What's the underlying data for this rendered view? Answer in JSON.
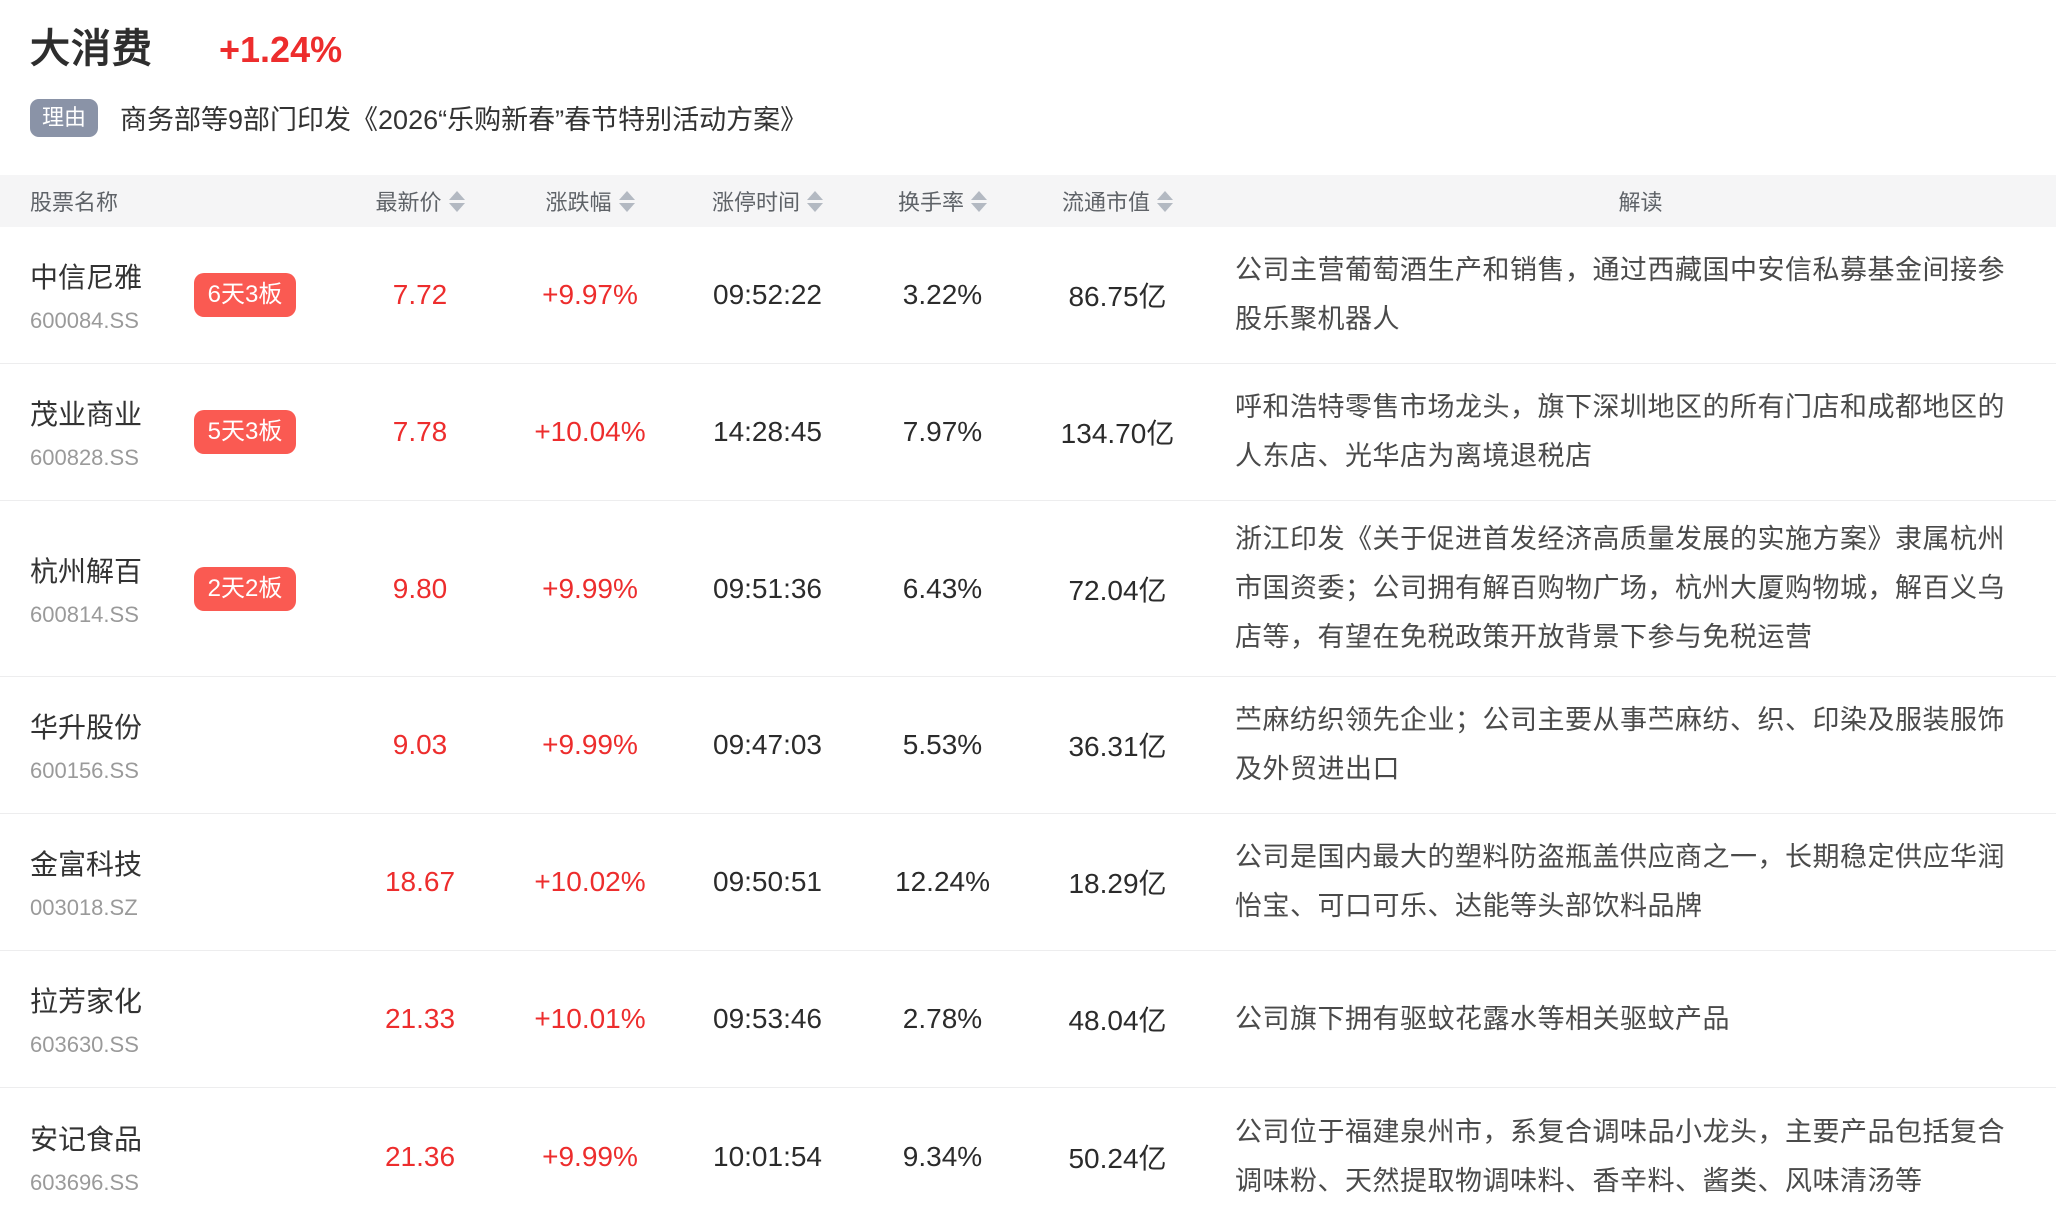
{
  "page": {
    "sector": {
      "name": "大消费",
      "change": "+1.24%"
    },
    "reason": {
      "tag": "理由",
      "text": "商务部等9部门印发《2026“乐购新春”春节特别活动方案》"
    }
  },
  "table": {
    "columns": [
      {
        "label": "股票名称",
        "sortable": false
      },
      {
        "label": "最新价",
        "sortable": true
      },
      {
        "label": "涨跌幅",
        "sortable": true
      },
      {
        "label": "涨停时间",
        "sortable": true
      },
      {
        "label": "换手率",
        "sortable": true
      },
      {
        "label": "流通市值",
        "sortable": true
      },
      {
        "label": "解读",
        "sortable": false
      }
    ],
    "rows": [
      {
        "name": "中信尼雅",
        "code": "600084.SS",
        "badge": "6天3板",
        "price": "7.72",
        "change": "+9.97%",
        "limit_time": "09:52:22",
        "turnover": "3.22%",
        "market_cap": "86.75亿",
        "comment": "公司主营葡萄酒生产和销售，通过西藏国中安信私募基金间接参股乐聚机器人"
      },
      {
        "name": "茂业商业",
        "code": "600828.SS",
        "badge": "5天3板",
        "price": "7.78",
        "change": "+10.04%",
        "limit_time": "14:28:45",
        "turnover": "7.97%",
        "market_cap": "134.70亿",
        "comment": "呼和浩特零售市场龙头，旗下深圳地区的所有门店和成都地区的人东店、光华店为离境退税店"
      },
      {
        "name": "杭州解百",
        "code": "600814.SS",
        "badge": "2天2板",
        "price": "9.80",
        "change": "+9.99%",
        "limit_time": "09:51:36",
        "turnover": "6.43%",
        "market_cap": "72.04亿",
        "comment": "浙江印发《关于促进首发经济高质量发展的实施方案》隶属杭州市国资委；公司拥有解百购物广场，杭州大厦购物城，解百义乌店等，有望在免税政策开放背景下参与免税运营"
      },
      {
        "name": "华升股份",
        "code": "600156.SS",
        "badge": "",
        "price": "9.03",
        "change": "+9.99%",
        "limit_time": "09:47:03",
        "turnover": "5.53%",
        "market_cap": "36.31亿",
        "comment": "苎麻纺织领先企业；公司主要从事苎麻纺、织、印染及服装服饰及外贸进出口"
      },
      {
        "name": "金富科技",
        "code": "003018.SZ",
        "badge": "",
        "price": "18.67",
        "change": "+10.02%",
        "limit_time": "09:50:51",
        "turnover": "12.24%",
        "market_cap": "18.29亿",
        "comment": "公司是国内最大的塑料防盗瓶盖供应商之一，长期稳定供应华润怡宝、可口可乐、达能等头部饮料品牌"
      },
      {
        "name": "拉芳家化",
        "code": "603630.SS",
        "badge": "",
        "price": "21.33",
        "change": "+10.01%",
        "limit_time": "09:53:46",
        "turnover": "2.78%",
        "market_cap": "48.04亿",
        "comment": "公司旗下拥有驱蚊花露水等相关驱蚊产品"
      },
      {
        "name": "安记食品",
        "code": "603696.SS",
        "badge": "",
        "price": "21.36",
        "change": "+9.99%",
        "limit_time": "10:01:54",
        "turnover": "9.34%",
        "market_cap": "50.24亿",
        "comment": "公司位于福建泉州市，系复合调味品小龙头，主要产品包括复合调味粉、天然提取物调味料、香辛料、酱类、风味清汤等"
      }
    ]
  },
  "icons": {
    "sort_icon": "up-down-triangles"
  },
  "colors": {
    "accent_red": "#ed2d2d",
    "badge_red": "#fa5a52",
    "reason_tag_bg": "#8a93a7",
    "header_bg": "#f5f5f6",
    "sort_icon": "#b3b9c2"
  }
}
